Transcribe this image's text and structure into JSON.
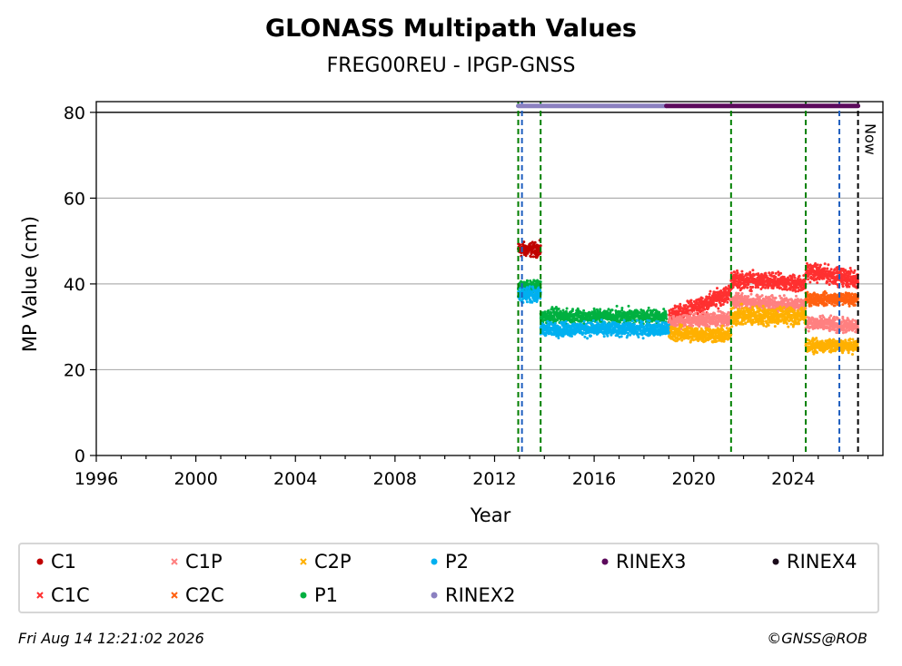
{
  "chart_data": {
    "type": "scatter",
    "title": "GLONASS Multipath Values",
    "subtitle": "FREG00REU - IPGP-GNSS",
    "xlabel": "Year",
    "ylabel": "MP Value (cm)",
    "xlim": [
      1996,
      2027.6
    ],
    "ylim": [
      0,
      82.5
    ],
    "xticks": [
      1996,
      2000,
      2004,
      2008,
      2012,
      2016,
      2020,
      2024
    ],
    "yticks": [
      0,
      20,
      40,
      60,
      80
    ],
    "grid": "horizontal",
    "legend_position": "bottom",
    "reference_line_y": 80,
    "now_label": "Now",
    "now_x": 2026.6,
    "vlines": [
      {
        "x": 2012.95,
        "color": "#c00000"
      },
      {
        "x": 2012.95,
        "color": "#008000"
      },
      {
        "x": 2013.1,
        "color": "#1f5fbf"
      },
      {
        "x": 2013.85,
        "color": "#008000"
      },
      {
        "x": 2021.5,
        "color": "#008000"
      },
      {
        "x": 2024.5,
        "color": "#008000"
      },
      {
        "x": 2025.85,
        "color": "#1f5fbf"
      },
      {
        "x": 2026.6,
        "color": "#000000"
      }
    ],
    "rinex_bars": [
      {
        "name": "RINEX2",
        "x": [
          2012.95,
          2018.9
        ],
        "y": 81.5,
        "color": "#8b80c0"
      },
      {
        "name": "RINEX3",
        "x": [
          2018.9,
          2026.6
        ],
        "y": 81.5,
        "color": "#5c0a5c"
      }
    ],
    "series": [
      {
        "name": "C1",
        "color": "#c00000",
        "marker": "dot",
        "segments": [
          {
            "x": [
              2012.95,
              2013.85
            ],
            "y": 48,
            "spread": 1.5
          }
        ]
      },
      {
        "name": "C1C",
        "color": "#ff3030",
        "marker": "x",
        "segments": [
          {
            "x": [
              2019.0,
              2021.5
            ],
            "y": [
              32,
              38
            ],
            "spread": 1.8
          },
          {
            "x": [
              2021.5,
              2024.5
            ],
            "y": [
              41,
              40
            ],
            "spread": 1.8
          },
          {
            "x": [
              2024.5,
              2026.6
            ],
            "y": [
              43,
              41
            ],
            "spread": 1.8
          }
        ]
      },
      {
        "name": "C1P",
        "color": "#ff8080",
        "marker": "x",
        "segments": [
          {
            "x": [
              2019.0,
              2021.5
            ],
            "y": [
              31,
              32
            ],
            "spread": 1.5
          },
          {
            "x": [
              2021.5,
              2024.5
            ],
            "y": [
              36,
              35
            ],
            "spread": 1.5
          },
          {
            "x": [
              2024.5,
              2026.6
            ],
            "y": [
              31,
              30
            ],
            "spread": 1.5
          }
        ]
      },
      {
        "name": "C2C",
        "color": "#ff6010",
        "marker": "x",
        "segments": [
          {
            "x": [
              2024.5,
              2026.6
            ],
            "y": 36.5,
            "spread": 1.3
          }
        ]
      },
      {
        "name": "C2P",
        "color": "#ffb000",
        "marker": "x",
        "segments": [
          {
            "x": [
              2019.0,
              2021.5
            ],
            "y": [
              28.5,
              28
            ],
            "spread": 1.6
          },
          {
            "x": [
              2021.5,
              2024.5
            ],
            "y": 32.5,
            "spread": 2.0
          },
          {
            "x": [
              2024.5,
              2026.6
            ],
            "y": 25.5,
            "spread": 1.3
          }
        ]
      },
      {
        "name": "P1",
        "color": "#00b040",
        "marker": "dot",
        "segments": [
          {
            "x": [
              2012.95,
              2013.85
            ],
            "y": 39.5,
            "spread": 1.2
          },
          {
            "x": [
              2013.85,
              2018.9
            ],
            "y": 32.5,
            "spread": 1.5
          }
        ]
      },
      {
        "name": "P2",
        "color": "#00b0f0",
        "marker": "dot",
        "segments": [
          {
            "x": [
              2012.95,
              2013.85
            ],
            "y": 37.5,
            "spread": 1.5
          },
          {
            "x": [
              2013.85,
              2019.0
            ],
            "y": 29.5,
            "spread": 1.5
          }
        ]
      }
    ]
  },
  "legend": {
    "items": [
      {
        "label": "C1",
        "color": "#c00000",
        "marker": "dot"
      },
      {
        "label": "C1C",
        "color": "#ff3030",
        "marker": "x"
      },
      {
        "label": "C1P",
        "color": "#ff8080",
        "marker": "x"
      },
      {
        "label": "C2C",
        "color": "#ff6010",
        "marker": "x"
      },
      {
        "label": "C2P",
        "color": "#ffb000",
        "marker": "x"
      },
      {
        "label": "P1",
        "color": "#00b040",
        "marker": "dot"
      },
      {
        "label": "P2",
        "color": "#00b0f0",
        "marker": "dot"
      },
      {
        "label": "RINEX2",
        "color": "#8b80c0",
        "marker": "dot"
      },
      {
        "label": "RINEX3",
        "color": "#5c0a5c",
        "marker": "dot"
      },
      {
        "label": "RINEX4",
        "color": "#1a0a1a",
        "marker": "dot"
      }
    ]
  },
  "footer": {
    "timestamp": "Fri Aug 14 12:21:02 2026",
    "copyright": "©GNSS@ROB"
  }
}
